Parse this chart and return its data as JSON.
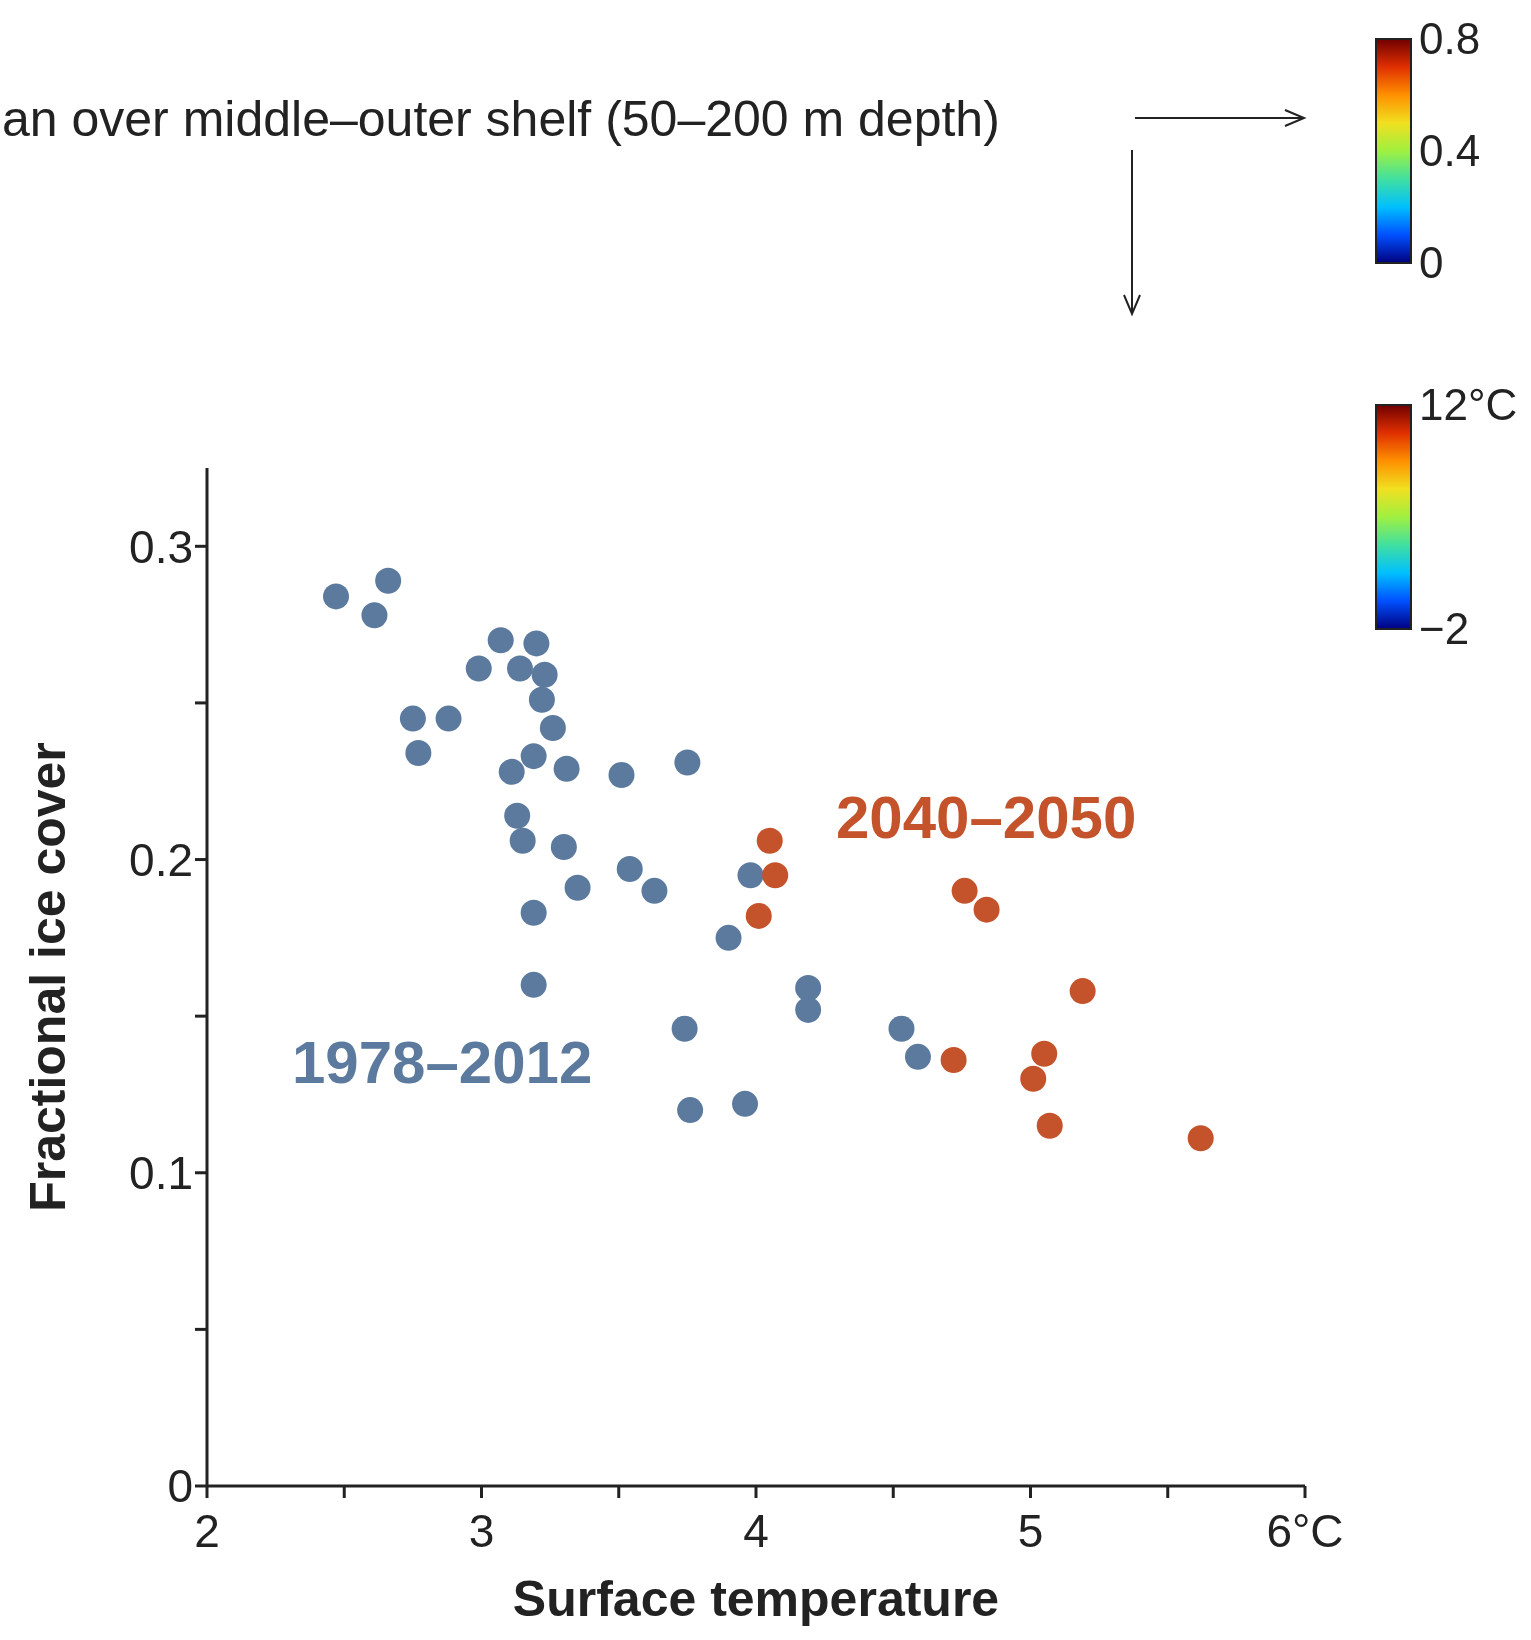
{
  "chart_data": [
    {
      "type": "scatter",
      "xlabel": "Surface temperature",
      "ylabel": "Fractional ice cover",
      "xlim": [
        2,
        6
      ],
      "ylim": [
        0,
        0.325
      ],
      "xticks": [
        2,
        {
          "value": 2.5,
          "label": null
        },
        3,
        {
          "value": 3.5,
          "label": null
        },
        4,
        {
          "value": 4.5,
          "label": null
        },
        5,
        {
          "value": 5.5,
          "label": null
        },
        {
          "value": 6,
          "label": "6°C"
        }
      ],
      "yticks": [
        0,
        {
          "value": 0.05,
          "label": null
        },
        0.1,
        {
          "value": 0.15,
          "label": null
        },
        0.2,
        {
          "value": 0.25,
          "label": null
        },
        0.3
      ],
      "marker": "circle",
      "legend": false,
      "grid": false,
      "annotations": [
        "an over middle–outer shelf (50–200 m depth)"
      ],
      "series": [
        {
          "name": "1978–2012",
          "color": "#5b7a9e",
          "x": [
            2.47,
            2.61,
            2.66,
            2.75,
            2.88,
            2.77,
            2.99,
            3.07,
            3.14,
            3.2,
            3.23,
            3.22,
            3.26,
            3.11,
            3.19,
            3.31,
            3.13,
            3.15,
            3.3,
            3.51,
            3.75,
            3.54,
            3.35,
            3.63,
            3.19,
            3.19,
            3.9,
            3.98,
            3.74,
            3.76,
            3.96,
            4.19,
            4.19,
            4.53,
            4.59
          ],
          "values": [
            0.284,
            0.278,
            0.289,
            0.245,
            0.245,
            0.234,
            0.261,
            0.27,
            0.261,
            0.269,
            0.259,
            0.251,
            0.242,
            0.228,
            0.233,
            0.229,
            0.214,
            0.206,
            0.204,
            0.227,
            0.231,
            0.197,
            0.191,
            0.19,
            0.183,
            0.16,
            0.175,
            0.195,
            0.146,
            0.12,
            0.122,
            0.159,
            0.152,
            0.146,
            0.137
          ]
        },
        {
          "name": "2040–2050",
          "color": "#c4522a",
          "x": [
            4.05,
            4.07,
            4.01,
            4.76,
            4.84,
            5.19,
            5.05,
            4.72,
            5.01,
            5.07,
            5.62
          ],
          "values": [
            0.206,
            0.195,
            0.182,
            0.19,
            0.184,
            0.158,
            0.138,
            0.136,
            0.13,
            0.115,
            0.111
          ]
        }
      ]
    },
    {
      "type": "other",
      "annotations": [
        "0.8",
        "0.4",
        "0"
      ]
    },
    {
      "type": "other",
      "annotations": [
        "12°C",
        "−2"
      ]
    }
  ]
}
